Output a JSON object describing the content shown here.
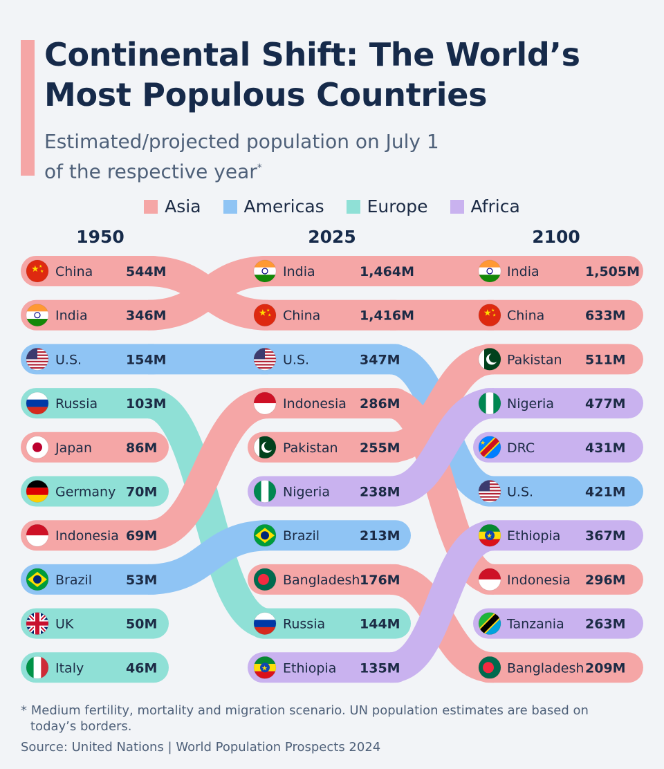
{
  "header": {
    "title": "Continental Shift: The World’s Most Populous Countries",
    "subtitle": "Estimated/projected population on July 1 of the respective year",
    "subtitle_mark": "*"
  },
  "legend": [
    {
      "label": "Asia",
      "color": "#f5a6a6"
    },
    {
      "label": "Americas",
      "color": "#8fc4f4"
    },
    {
      "label": "Europe",
      "color": "#8fe0d6"
    },
    {
      "label": "Africa",
      "color": "#c9b2ef"
    }
  ],
  "chart_data": {
    "type": "table",
    "years": [
      "1950",
      "2025",
      "2100"
    ],
    "columns": [
      {
        "year": "1950",
        "rows": [
          {
            "country": "China",
            "value": "544M",
            "region": "Asia",
            "flag": "china-flag"
          },
          {
            "country": "India",
            "value": "346M",
            "region": "Asia",
            "flag": "india-flag"
          },
          {
            "country": "U.S.",
            "value": "154M",
            "region": "Americas",
            "flag": "us-flag"
          },
          {
            "country": "Russia",
            "value": "103M",
            "region": "Europe",
            "flag": "russia-flag"
          },
          {
            "country": "Japan",
            "value": "86M",
            "region": "Asia",
            "flag": "japan-flag"
          },
          {
            "country": "Germany",
            "value": "70M",
            "region": "Europe",
            "flag": "germany-flag"
          },
          {
            "country": "Indonesia",
            "value": "69M",
            "region": "Asia",
            "flag": "indonesia-flag"
          },
          {
            "country": "Brazil",
            "value": "53M",
            "region": "Americas",
            "flag": "brazil-flag"
          },
          {
            "country": "UK",
            "value": "50M",
            "region": "Europe",
            "flag": "uk-flag"
          },
          {
            "country": "Italy",
            "value": "46M",
            "region": "Europe",
            "flag": "italy-flag"
          }
        ]
      },
      {
        "year": "2025",
        "rows": [
          {
            "country": "India",
            "value": "1,464M",
            "region": "Asia",
            "flag": "india-flag"
          },
          {
            "country": "China",
            "value": "1,416M",
            "region": "Asia",
            "flag": "china-flag"
          },
          {
            "country": "U.S.",
            "value": "347M",
            "region": "Americas",
            "flag": "us-flag"
          },
          {
            "country": "Indonesia",
            "value": "286M",
            "region": "Asia",
            "flag": "indonesia-flag"
          },
          {
            "country": "Pakistan",
            "value": "255M",
            "region": "Asia",
            "flag": "pakistan-flag"
          },
          {
            "country": "Nigeria",
            "value": "238M",
            "region": "Africa",
            "flag": "nigeria-flag"
          },
          {
            "country": "Brazil",
            "value": "213M",
            "region": "Americas",
            "flag": "brazil-flag"
          },
          {
            "country": "Bangladesh",
            "value": "176M",
            "region": "Asia",
            "flag": "bangladesh-flag"
          },
          {
            "country": "Russia",
            "value": "144M",
            "region": "Europe",
            "flag": "russia-flag"
          },
          {
            "country": "Ethiopia",
            "value": "135M",
            "region": "Africa",
            "flag": "ethiopia-flag"
          }
        ]
      },
      {
        "year": "2100",
        "rows": [
          {
            "country": "India",
            "value": "1,505M",
            "region": "Asia",
            "flag": "india-flag"
          },
          {
            "country": "China",
            "value": "633M",
            "region": "Asia",
            "flag": "china-flag"
          },
          {
            "country": "Pakistan",
            "value": "511M",
            "region": "Asia",
            "flag": "pakistan-flag"
          },
          {
            "country": "Nigeria",
            "value": "477M",
            "region": "Africa",
            "flag": "nigeria-flag"
          },
          {
            "country": "DRC",
            "value": "431M",
            "region": "Africa",
            "flag": "drc-flag"
          },
          {
            "country": "U.S.",
            "value": "421M",
            "region": "Americas",
            "flag": "us-flag"
          },
          {
            "country": "Ethiopia",
            "value": "367M",
            "region": "Africa",
            "flag": "ethiopia-flag"
          },
          {
            "country": "Indonesia",
            "value": "296M",
            "region": "Asia",
            "flag": "indonesia-flag"
          },
          {
            "country": "Tanzania",
            "value": "263M",
            "region": "Africa",
            "flag": "tanzania-flag"
          },
          {
            "country": "Bangladesh",
            "value": "209M",
            "region": "Asia",
            "flag": "bangladesh-flag"
          }
        ]
      }
    ]
  },
  "footer": {
    "footnote_line1": "* Medium fertility, mortality and migration scenario. UN population estimates are based on",
    "footnote_line2": "today’s borders.",
    "source": "Source: United Nations | World Population Prospects 2024"
  }
}
